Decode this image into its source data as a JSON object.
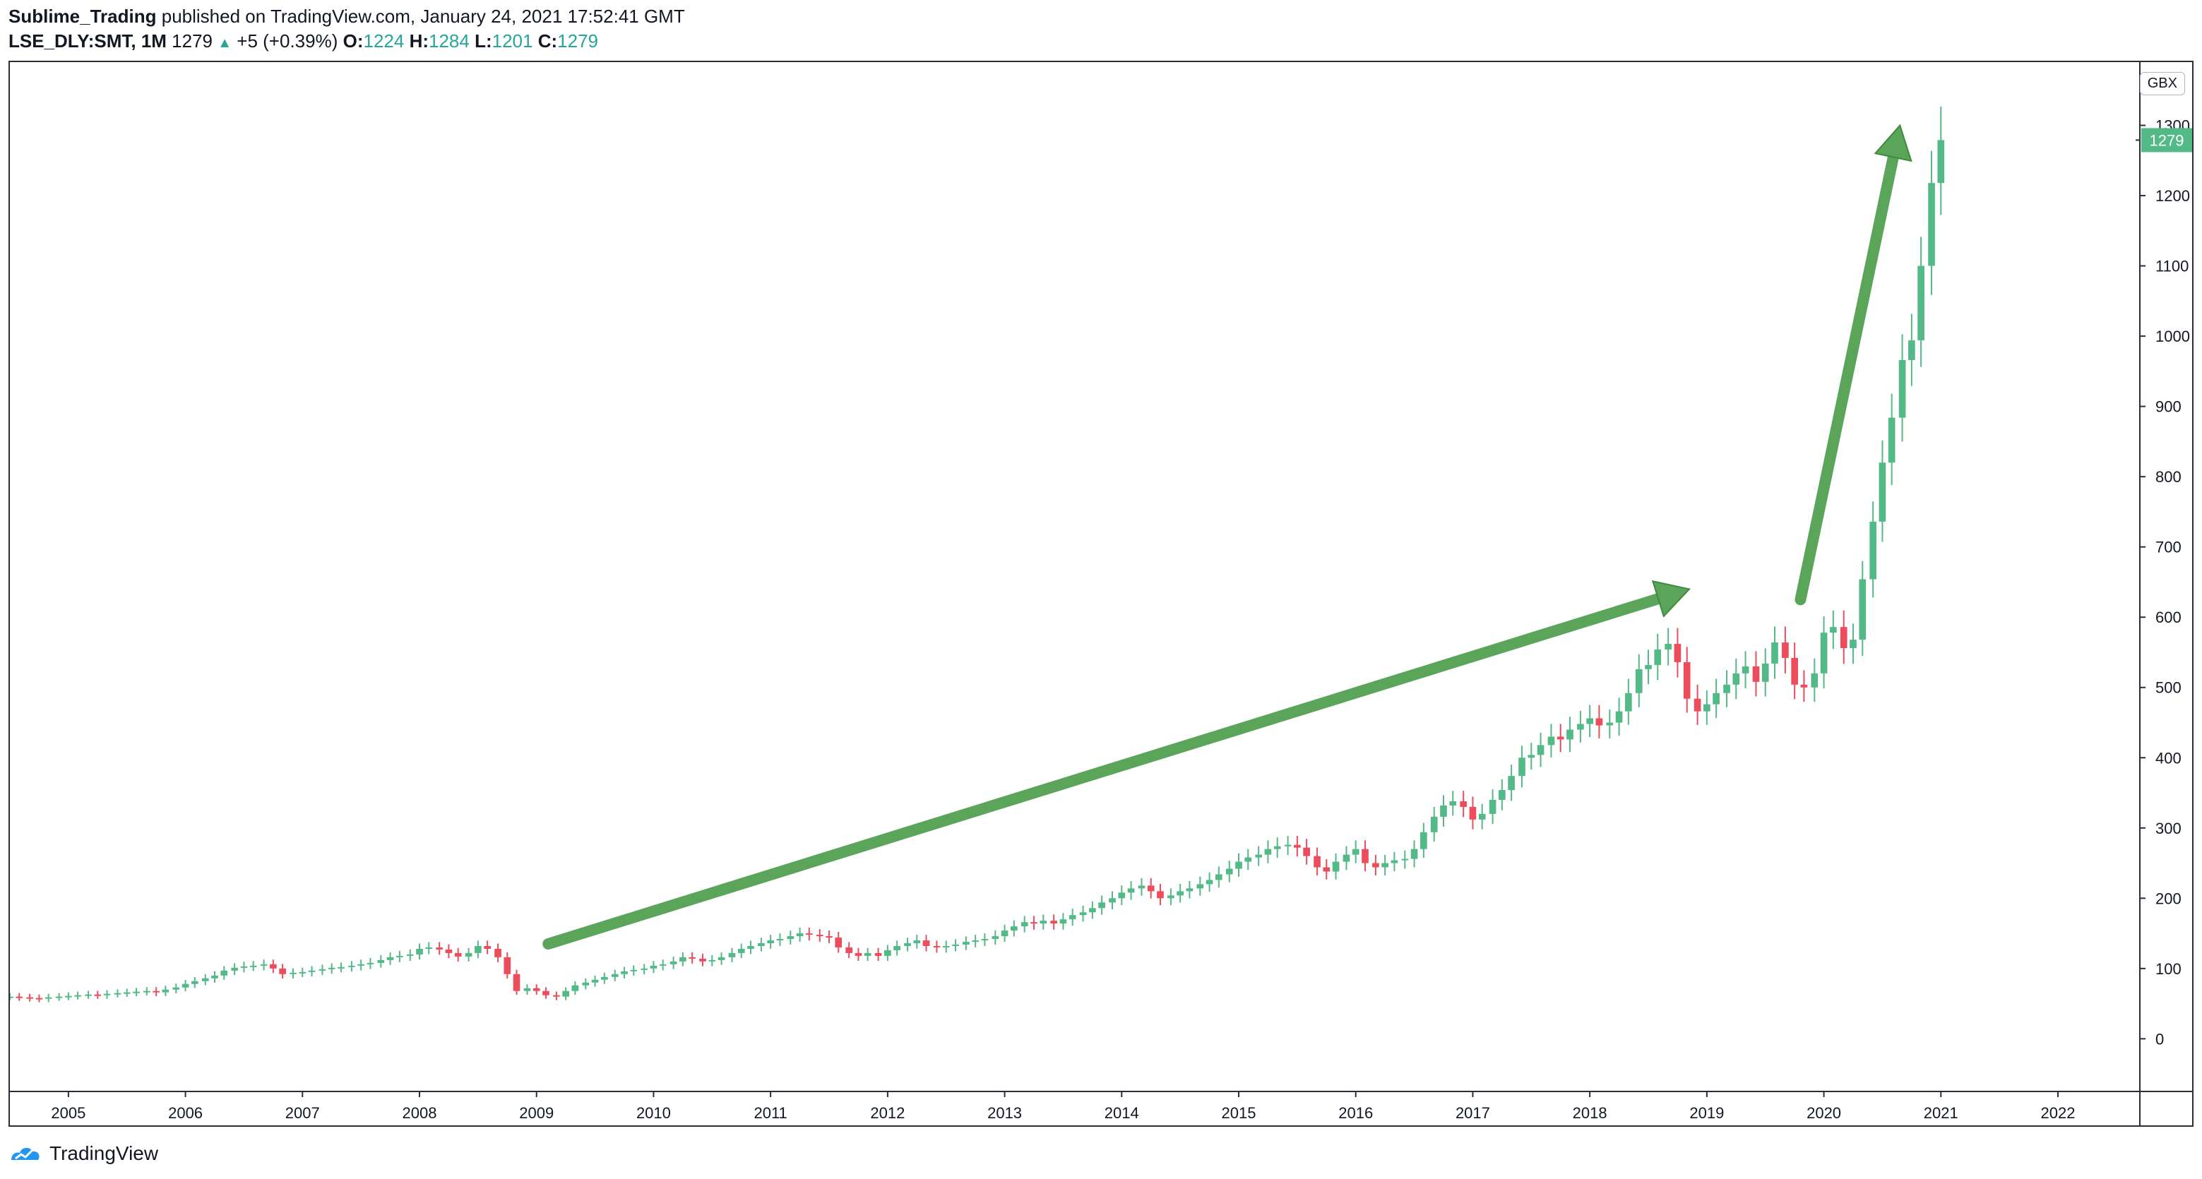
{
  "header": {
    "author": "Sublime_Trading",
    "published_text": "published on TradingView.com, January 24, 2021 17:52:41 GMT",
    "symbol": "LSE_DLY:SMT, 1M",
    "last": "1279",
    "change": "+5 (+0.39%)",
    "open_label": "O:",
    "open": "1224",
    "high_label": "H:",
    "high": "1284",
    "low_label": "L:",
    "low": "1201",
    "close_label": "C:",
    "close": "1279"
  },
  "currency_badge": "GBX",
  "footer": {
    "brand": "TradingView"
  },
  "colors": {
    "up": "#53b987",
    "down": "#eb4d5c",
    "arrow": "#5aa55a",
    "arrow_edge": "#3f8a3f",
    "price_label": "#53b987"
  },
  "chart_data": {
    "type": "candlestick",
    "title": "LSE_DLY:SMT, 1M",
    "xlabel": "",
    "ylabel": "GBX",
    "x_ticks": [
      "2005",
      "2006",
      "2007",
      "2008",
      "2009",
      "2010",
      "2011",
      "2012",
      "2013",
      "2014",
      "2015",
      "2016",
      "2017",
      "2018",
      "2019",
      "2020",
      "2021",
      "2022"
    ],
    "y_ticks": [
      "0",
      "100",
      "200",
      "300",
      "400",
      "500",
      "600",
      "700",
      "800",
      "900",
      "1000",
      "1100",
      "1200",
      "1300"
    ],
    "ylim": [
      -75,
      1390
    ],
    "xlim": [
      2004.5,
      2022.7
    ],
    "last_price": 1279,
    "last_price_label": "1279",
    "annotations": [
      {
        "type": "arrow",
        "from": [
          2009.1,
          135
        ],
        "to": [
          2018.85,
          640
        ]
      },
      {
        "type": "arrow",
        "from": [
          2019.8,
          625
        ],
        "to": [
          2020.65,
          1300
        ]
      }
    ],
    "closes": [
      {
        "t": 2004.5,
        "c": 60
      },
      {
        "t": 2004.58,
        "c": 59
      },
      {
        "t": 2004.67,
        "c": 58
      },
      {
        "t": 2004.75,
        "c": 57
      },
      {
        "t": 2004.83,
        "c": 59
      },
      {
        "t": 2004.92,
        "c": 60
      },
      {
        "t": 2005.0,
        "c": 61
      },
      {
        "t": 2005.08,
        "c": 62
      },
      {
        "t": 2005.17,
        "c": 63
      },
      {
        "t": 2005.25,
        "c": 62
      },
      {
        "t": 2005.33,
        "c": 64
      },
      {
        "t": 2005.42,
        "c": 65
      },
      {
        "t": 2005.5,
        "c": 66
      },
      {
        "t": 2005.58,
        "c": 67
      },
      {
        "t": 2005.67,
        "c": 68
      },
      {
        "t": 2005.75,
        "c": 66
      },
      {
        "t": 2005.83,
        "c": 70
      },
      {
        "t": 2005.92,
        "c": 73
      },
      {
        "t": 2006.0,
        "c": 78
      },
      {
        "t": 2006.08,
        "c": 82
      },
      {
        "t": 2006.17,
        "c": 86
      },
      {
        "t": 2006.25,
        "c": 90
      },
      {
        "t": 2006.33,
        "c": 97
      },
      {
        "t": 2006.42,
        "c": 101
      },
      {
        "t": 2006.5,
        "c": 103
      },
      {
        "t": 2006.58,
        "c": 104
      },
      {
        "t": 2006.67,
        "c": 106
      },
      {
        "t": 2006.75,
        "c": 100
      },
      {
        "t": 2006.83,
        "c": 92
      },
      {
        "t": 2006.92,
        "c": 94
      },
      {
        "t": 2007.0,
        "c": 95
      },
      {
        "t": 2007.08,
        "c": 97
      },
      {
        "t": 2007.17,
        "c": 99
      },
      {
        "t": 2007.25,
        "c": 101
      },
      {
        "t": 2007.33,
        "c": 102
      },
      {
        "t": 2007.42,
        "c": 104
      },
      {
        "t": 2007.5,
        "c": 106
      },
      {
        "t": 2007.58,
        "c": 108
      },
      {
        "t": 2007.67,
        "c": 112
      },
      {
        "t": 2007.75,
        "c": 116
      },
      {
        "t": 2007.83,
        "c": 118
      },
      {
        "t": 2007.92,
        "c": 120
      },
      {
        "t": 2008.0,
        "c": 128
      },
      {
        "t": 2008.08,
        "c": 130
      },
      {
        "t": 2008.17,
        "c": 127
      },
      {
        "t": 2008.25,
        "c": 122
      },
      {
        "t": 2008.33,
        "c": 117
      },
      {
        "t": 2008.42,
        "c": 122
      },
      {
        "t": 2008.5,
        "c": 132
      },
      {
        "t": 2008.58,
        "c": 128
      },
      {
        "t": 2008.67,
        "c": 116
      },
      {
        "t": 2008.75,
        "c": 92
      },
      {
        "t": 2008.83,
        "c": 68
      },
      {
        "t": 2008.92,
        "c": 72
      },
      {
        "t": 2009.0,
        "c": 68
      },
      {
        "t": 2009.08,
        "c": 62
      },
      {
        "t": 2009.17,
        "c": 60
      },
      {
        "t": 2009.25,
        "c": 68
      },
      {
        "t": 2009.33,
        "c": 76
      },
      {
        "t": 2009.42,
        "c": 80
      },
      {
        "t": 2009.5,
        "c": 84
      },
      {
        "t": 2009.58,
        "c": 88
      },
      {
        "t": 2009.67,
        "c": 92
      },
      {
        "t": 2009.75,
        "c": 96
      },
      {
        "t": 2009.83,
        "c": 98
      },
      {
        "t": 2009.92,
        "c": 100
      },
      {
        "t": 2010.0,
        "c": 104
      },
      {
        "t": 2010.08,
        "c": 106
      },
      {
        "t": 2010.17,
        "c": 110
      },
      {
        "t": 2010.25,
        "c": 116
      },
      {
        "t": 2010.33,
        "c": 114
      },
      {
        "t": 2010.42,
        "c": 110
      },
      {
        "t": 2010.5,
        "c": 112
      },
      {
        "t": 2010.58,
        "c": 116
      },
      {
        "t": 2010.67,
        "c": 122
      },
      {
        "t": 2010.75,
        "c": 128
      },
      {
        "t": 2010.83,
        "c": 132
      },
      {
        "t": 2010.92,
        "c": 136
      },
      {
        "t": 2011.0,
        "c": 140
      },
      {
        "t": 2011.08,
        "c": 142
      },
      {
        "t": 2011.17,
        "c": 146
      },
      {
        "t": 2011.25,
        "c": 150
      },
      {
        "t": 2011.33,
        "c": 148
      },
      {
        "t": 2011.42,
        "c": 146
      },
      {
        "t": 2011.5,
        "c": 144
      },
      {
        "t": 2011.58,
        "c": 130
      },
      {
        "t": 2011.67,
        "c": 122
      },
      {
        "t": 2011.75,
        "c": 118
      },
      {
        "t": 2011.83,
        "c": 122
      },
      {
        "t": 2011.92,
        "c": 118
      },
      {
        "t": 2012.0,
        "c": 126
      },
      {
        "t": 2012.08,
        "c": 132
      },
      {
        "t": 2012.17,
        "c": 136
      },
      {
        "t": 2012.25,
        "c": 140
      },
      {
        "t": 2012.33,
        "c": 132
      },
      {
        "t": 2012.42,
        "c": 130
      },
      {
        "t": 2012.5,
        "c": 132
      },
      {
        "t": 2012.58,
        "c": 134
      },
      {
        "t": 2012.67,
        "c": 138
      },
      {
        "t": 2012.75,
        "c": 140
      },
      {
        "t": 2012.83,
        "c": 142
      },
      {
        "t": 2012.92,
        "c": 146
      },
      {
        "t": 2013.0,
        "c": 154
      },
      {
        "t": 2013.08,
        "c": 160
      },
      {
        "t": 2013.17,
        "c": 166
      },
      {
        "t": 2013.25,
        "c": 164
      },
      {
        "t": 2013.33,
        "c": 168
      },
      {
        "t": 2013.42,
        "c": 164
      },
      {
        "t": 2013.5,
        "c": 170
      },
      {
        "t": 2013.58,
        "c": 176
      },
      {
        "t": 2013.67,
        "c": 180
      },
      {
        "t": 2013.75,
        "c": 186
      },
      {
        "t": 2013.83,
        "c": 194
      },
      {
        "t": 2013.92,
        "c": 200
      },
      {
        "t": 2014.0,
        "c": 208
      },
      {
        "t": 2014.08,
        "c": 214
      },
      {
        "t": 2014.17,
        "c": 218
      },
      {
        "t": 2014.25,
        "c": 210
      },
      {
        "t": 2014.33,
        "c": 200
      },
      {
        "t": 2014.42,
        "c": 204
      },
      {
        "t": 2014.5,
        "c": 210
      },
      {
        "t": 2014.58,
        "c": 214
      },
      {
        "t": 2014.67,
        "c": 220
      },
      {
        "t": 2014.75,
        "c": 226
      },
      {
        "t": 2014.83,
        "c": 234
      },
      {
        "t": 2014.92,
        "c": 242
      },
      {
        "t": 2015.0,
        "c": 252
      },
      {
        "t": 2015.08,
        "c": 258
      },
      {
        "t": 2015.17,
        "c": 262
      },
      {
        "t": 2015.25,
        "c": 270
      },
      {
        "t": 2015.33,
        "c": 274
      },
      {
        "t": 2015.42,
        "c": 276
      },
      {
        "t": 2015.5,
        "c": 272
      },
      {
        "t": 2015.58,
        "c": 260
      },
      {
        "t": 2015.67,
        "c": 244
      },
      {
        "t": 2015.75,
        "c": 238
      },
      {
        "t": 2015.83,
        "c": 252
      },
      {
        "t": 2015.92,
        "c": 262
      },
      {
        "t": 2016.0,
        "c": 270
      },
      {
        "t": 2016.08,
        "c": 250
      },
      {
        "t": 2016.17,
        "c": 244
      },
      {
        "t": 2016.25,
        "c": 250
      },
      {
        "t": 2016.33,
        "c": 254
      },
      {
        "t": 2016.42,
        "c": 256
      },
      {
        "t": 2016.5,
        "c": 270
      },
      {
        "t": 2016.58,
        "c": 294
      },
      {
        "t": 2016.67,
        "c": 316
      },
      {
        "t": 2016.75,
        "c": 332
      },
      {
        "t": 2016.83,
        "c": 338
      },
      {
        "t": 2016.92,
        "c": 330
      },
      {
        "t": 2017.0,
        "c": 312
      },
      {
        "t": 2017.08,
        "c": 320
      },
      {
        "t": 2017.17,
        "c": 340
      },
      {
        "t": 2017.25,
        "c": 354
      },
      {
        "t": 2017.33,
        "c": 374
      },
      {
        "t": 2017.42,
        "c": 400
      },
      {
        "t": 2017.5,
        "c": 404
      },
      {
        "t": 2017.58,
        "c": 418
      },
      {
        "t": 2017.67,
        "c": 430
      },
      {
        "t": 2017.75,
        "c": 426
      },
      {
        "t": 2017.83,
        "c": 440
      },
      {
        "t": 2017.92,
        "c": 448
      },
      {
        "t": 2018.0,
        "c": 456
      },
      {
        "t": 2018.08,
        "c": 446
      },
      {
        "t": 2018.17,
        "c": 450
      },
      {
        "t": 2018.25,
        "c": 466
      },
      {
        "t": 2018.33,
        "c": 492
      },
      {
        "t": 2018.42,
        "c": 526
      },
      {
        "t": 2018.5,
        "c": 532
      },
      {
        "t": 2018.58,
        "c": 554
      },
      {
        "t": 2018.67,
        "c": 562
      },
      {
        "t": 2018.75,
        "c": 536
      },
      {
        "t": 2018.83,
        "c": 484
      },
      {
        "t": 2018.92,
        "c": 466
      },
      {
        "t": 2019.0,
        "c": 476
      },
      {
        "t": 2019.08,
        "c": 492
      },
      {
        "t": 2019.17,
        "c": 504
      },
      {
        "t": 2019.25,
        "c": 520
      },
      {
        "t": 2019.33,
        "c": 530
      },
      {
        "t": 2019.42,
        "c": 508
      },
      {
        "t": 2019.5,
        "c": 534
      },
      {
        "t": 2019.58,
        "c": 564
      },
      {
        "t": 2019.67,
        "c": 542
      },
      {
        "t": 2019.75,
        "c": 504
      },
      {
        "t": 2019.83,
        "c": 500
      },
      {
        "t": 2019.92,
        "c": 520
      },
      {
        "t": 2020.0,
        "c": 578
      },
      {
        "t": 2020.08,
        "c": 586
      },
      {
        "t": 2020.17,
        "c": 556
      },
      {
        "t": 2020.25,
        "c": 568
      },
      {
        "t": 2020.33,
        "c": 654
      },
      {
        "t": 2020.42,
        "c": 736
      },
      {
        "t": 2020.5,
        "c": 820
      },
      {
        "t": 2020.58,
        "c": 884
      },
      {
        "t": 2020.67,
        "c": 966
      },
      {
        "t": 2020.75,
        "c": 994
      },
      {
        "t": 2020.83,
        "c": 1100
      },
      {
        "t": 2020.92,
        "c": 1218
      },
      {
        "t": 2021.0,
        "c": 1279
      }
    ]
  }
}
